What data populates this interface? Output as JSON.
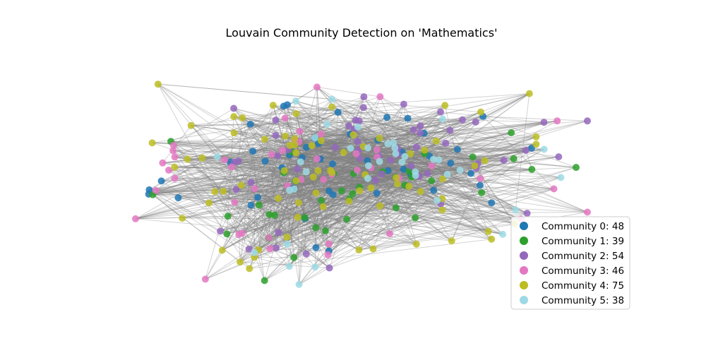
{
  "figure": {
    "title": "Louvain Community Detection on 'Mathematics'"
  },
  "colors": {
    "edge": "#808080",
    "legend_border": "#cccccc"
  },
  "communities": [
    {
      "id": 0,
      "label": "Community 0: 48",
      "color": "#1f77b4",
      "count": 48
    },
    {
      "id": 1,
      "label": "Community 1: 39",
      "color": "#2ca02c",
      "count": 39
    },
    {
      "id": 2,
      "label": "Community 2: 54",
      "color": "#9467bd",
      "count": 54
    },
    {
      "id": 3,
      "label": "Community 3: 46",
      "color": "#e377c2",
      "count": 46
    },
    {
      "id": 4,
      "label": "Community 4: 75",
      "color": "#bcbd22",
      "count": 75
    },
    {
      "id": 5,
      "label": "Community 5: 38",
      "color": "#9edae5",
      "count": 38
    }
  ],
  "legend": {
    "placement": "lower-right"
  }
}
